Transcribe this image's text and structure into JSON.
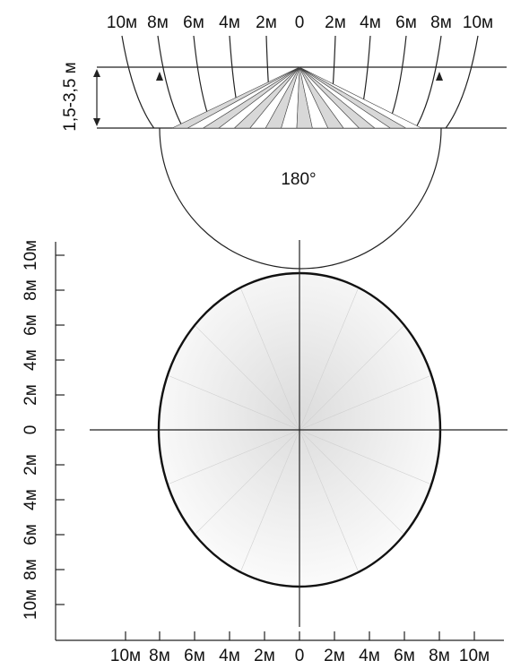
{
  "side_view": {
    "top_ticks": [
      "10м",
      "8м",
      "6м",
      "4м",
      "2м",
      "0",
      "2м",
      "4м",
      "6м",
      "8м",
      "10м"
    ],
    "height_label": "1,5-3,5 м",
    "angle_label": "180°"
  },
  "top_view": {
    "left_ticks": [
      "10м",
      "8м",
      "6м",
      "4м",
      "2м",
      "0",
      "2м",
      "4м",
      "6м",
      "8м",
      "10м"
    ],
    "bottom_ticks": [
      "10м",
      "8м",
      "6м",
      "4м",
      "2м",
      "0",
      "2м",
      "4м",
      "6м",
      "8м",
      "10м"
    ]
  },
  "colors": {
    "line": "#222222",
    "ellipse": "#111111",
    "beam_light": "#d8d8d8"
  }
}
